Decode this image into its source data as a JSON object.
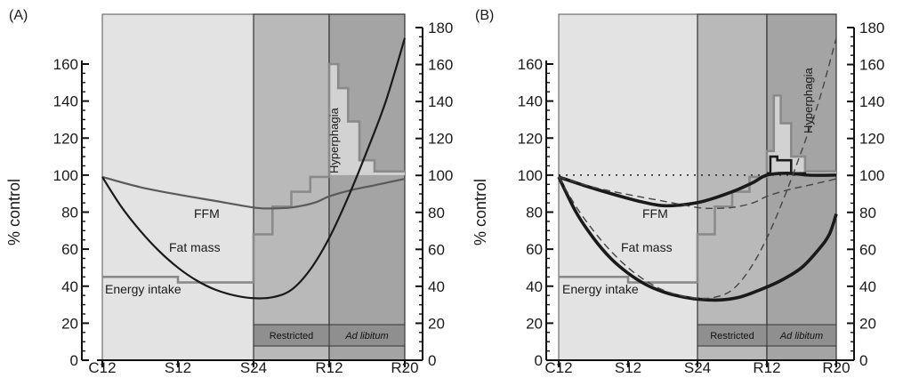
{
  "colors": {
    "phase_starvation": "#e3e3e3",
    "phase_restricted": "#b9b9b9",
    "phase_adlib": "#a4a4a4",
    "hyperphagia_fill": "#d2d2d2",
    "curve_grey": "#5a5a5a",
    "curve_dark": "#1a1a1a",
    "intake_grey": "#8a8a8a",
    "band_dark": "#8f8f8f"
  },
  "chart_data": [
    {
      "panel_label": "(A)",
      "type": "line",
      "ylabel": "% control",
      "x_ticks": [
        "C12",
        "S12",
        "S24",
        "R12",
        "R20"
      ],
      "x_range": [
        0,
        4
      ],
      "phase_bounds": {
        "starvation": [
          0,
          2
        ],
        "restricted": [
          2,
          3
        ],
        "ad_libitum": [
          3,
          4
        ]
      },
      "phase_labels": {
        "restricted": "Restricted",
        "ad_libitum": "Ad libitum"
      },
      "left_axis": {
        "ylim": [
          0,
          160
        ],
        "ticks": [
          0,
          20,
          40,
          60,
          80,
          100,
          120,
          140,
          160
        ]
      },
      "right_axis": {
        "ylim": [
          0,
          180
        ],
        "ticks": [
          0,
          20,
          40,
          60,
          80,
          100,
          120,
          140,
          160,
          180
        ]
      },
      "annotations": {
        "ffm": "FFM",
        "fat_mass": "Fat mass",
        "energy_intake": "Energy intake",
        "hyperphagia": "Hyperphagia"
      },
      "energy_intake_step": [
        [
          0,
          45
        ],
        [
          1,
          45
        ],
        [
          1,
          42
        ],
        [
          2,
          42
        ],
        [
          2,
          68
        ],
        [
          2.25,
          68
        ],
        [
          2.25,
          83
        ],
        [
          2.5,
          83
        ],
        [
          2.5,
          91
        ],
        [
          2.75,
          91
        ],
        [
          2.75,
          99
        ],
        [
          3,
          99
        ],
        [
          3,
          160
        ],
        [
          3.12,
          160
        ],
        [
          3.12,
          147
        ],
        [
          3.25,
          147
        ],
        [
          3.25,
          129
        ],
        [
          3.4,
          129
        ],
        [
          3.4,
          108
        ],
        [
          3.6,
          108
        ],
        [
          3.6,
          102
        ],
        [
          4,
          102
        ]
      ],
      "series": [
        {
          "name": "FFM",
          "style": "grey",
          "points": [
            [
              0,
              99
            ],
            [
              0.5,
              93.5
            ],
            [
              1,
              89.5
            ],
            [
              1.5,
              86
            ],
            [
              2,
              82.5
            ],
            [
              2.2,
              82
            ],
            [
              2.5,
              82.5
            ],
            [
              2.8,
              85
            ],
            [
              3,
              88.5
            ],
            [
              3.3,
              92
            ],
            [
              3.6,
              94.5
            ],
            [
              4,
              98
            ]
          ]
        },
        {
          "name": "Fat mass",
          "style": "dark",
          "points": [
            [
              0,
              99
            ],
            [
              0.25,
              83
            ],
            [
              0.5,
              70
            ],
            [
              0.75,
              59
            ],
            [
              1,
              50
            ],
            [
              1.25,
              43
            ],
            [
              1.5,
              38
            ],
            [
              1.75,
              35
            ],
            [
              2,
              33.5
            ],
            [
              2.25,
              34
            ],
            [
              2.5,
              38
            ],
            [
              2.75,
              49
            ],
            [
              3,
              66
            ],
            [
              3.25,
              88
            ],
            [
              3.5,
              113
            ],
            [
              3.75,
              140
            ],
            [
              4,
              174
            ]
          ]
        }
      ]
    },
    {
      "panel_label": "(B)",
      "type": "line",
      "ylabel": "% control",
      "x_ticks": [
        "C12",
        "S12",
        "S24",
        "R12",
        "R20"
      ],
      "x_range": [
        0,
        4
      ],
      "phase_bounds": {
        "starvation": [
          0,
          2
        ],
        "restricted": [
          2,
          3
        ],
        "ad_libitum": [
          3,
          4
        ]
      },
      "phase_labels": {
        "restricted": "Restricted",
        "ad_libitum": "Ad libitum"
      },
      "left_axis": {
        "ylim": [
          0,
          160
        ],
        "ticks": [
          0,
          20,
          40,
          60,
          80,
          100,
          120,
          140,
          160
        ]
      },
      "right_axis": {
        "ylim": [
          0,
          180
        ],
        "ticks": [
          0,
          20,
          40,
          60,
          80,
          100,
          120,
          140,
          160,
          180
        ]
      },
      "annotations": {
        "ffm": "FFM",
        "fat_mass": "Fat mass",
        "energy_intake": "Energy intake",
        "hyperphagia": "Hyperphagia"
      },
      "reference_line": 100,
      "energy_intake_step": [
        [
          0,
          45
        ],
        [
          1,
          45
        ],
        [
          1,
          42
        ],
        [
          2,
          42
        ],
        [
          2,
          68
        ],
        [
          2.25,
          68
        ],
        [
          2.25,
          83
        ],
        [
          2.5,
          83
        ],
        [
          2.5,
          91
        ],
        [
          2.75,
          91
        ],
        [
          2.75,
          99
        ],
        [
          3,
          99
        ],
        [
          3,
          113
        ],
        [
          3.1,
          113
        ],
        [
          3.1,
          143
        ],
        [
          3.2,
          143
        ],
        [
          3.2,
          128
        ],
        [
          3.35,
          128
        ],
        [
          3.35,
          110
        ],
        [
          3.55,
          110
        ],
        [
          3.55,
          102
        ],
        [
          4,
          102
        ]
      ],
      "energy_intake_bold_step": [
        [
          3,
          101
        ],
        [
          3.05,
          101
        ],
        [
          3.05,
          110
        ],
        [
          3.15,
          110
        ],
        [
          3.15,
          108
        ],
        [
          3.35,
          108
        ],
        [
          3.35,
          101
        ],
        [
          3.55,
          101
        ],
        [
          3.55,
          100
        ],
        [
          4,
          100
        ]
      ],
      "series": [
        {
          "name": "FFM",
          "style": "bold",
          "points": [
            [
              0,
              99
            ],
            [
              0.4,
              94
            ],
            [
              0.8,
              89.5
            ],
            [
              1.2,
              85.5
            ],
            [
              1.5,
              83.5
            ],
            [
              1.8,
              84
            ],
            [
              2.1,
              86
            ],
            [
              2.5,
              91
            ],
            [
              2.8,
              96
            ],
            [
              3,
              100
            ],
            [
              3.3,
              101
            ],
            [
              3.6,
              100
            ],
            [
              4,
              100
            ]
          ]
        },
        {
          "name": "Fat mass",
          "style": "bold",
          "points": [
            [
              0,
              99
            ],
            [
              0.25,
              80
            ],
            [
              0.5,
              66
            ],
            [
              0.75,
              55
            ],
            [
              1,
              47
            ],
            [
              1.25,
              41
            ],
            [
              1.5,
              37
            ],
            [
              1.75,
              34.5
            ],
            [
              2,
              33
            ],
            [
              2.3,
              32.5
            ],
            [
              2.6,
              34
            ],
            [
              2.9,
              38
            ],
            [
              3.2,
              43
            ],
            [
              3.5,
              50
            ],
            [
              3.75,
              60
            ],
            [
              3.9,
              68
            ],
            [
              4,
              79
            ]
          ]
        },
        {
          "name": "FFM (A)",
          "style": "dashed",
          "points": [
            [
              0,
              99
            ],
            [
              0.5,
              93.5
            ],
            [
              1,
              89.5
            ],
            [
              1.5,
              86
            ],
            [
              2,
              82.5
            ],
            [
              2.2,
              82
            ],
            [
              2.5,
              82.5
            ],
            [
              2.8,
              85
            ],
            [
              3,
              88.5
            ],
            [
              3.3,
              92
            ],
            [
              3.6,
              94.5
            ],
            [
              4,
              98
            ]
          ]
        },
        {
          "name": "Fat mass (A)",
          "style": "dashed",
          "points": [
            [
              0,
              99
            ],
            [
              0.25,
              83
            ],
            [
              0.5,
              70
            ],
            [
              0.75,
              59
            ],
            [
              1,
              50
            ],
            [
              1.25,
              43
            ],
            [
              1.5,
              38
            ],
            [
              1.75,
              35
            ],
            [
              2,
              33.5
            ],
            [
              2.25,
              34
            ],
            [
              2.5,
              38
            ],
            [
              2.75,
              49
            ],
            [
              3,
              66
            ],
            [
              3.25,
              88
            ],
            [
              3.5,
              113
            ],
            [
              3.75,
              140
            ],
            [
              4,
              174
            ]
          ]
        }
      ]
    }
  ]
}
